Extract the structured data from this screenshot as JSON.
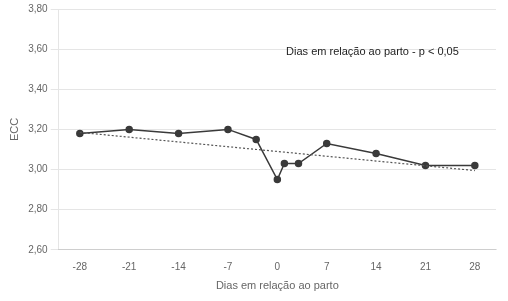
{
  "chart_data": {
    "type": "line",
    "xlabel": "Dias em relação ao parto",
    "ylabel": "ECC",
    "annotation": "Dias em relação ao parto - p < 0,05",
    "series": [
      {
        "x": [
          -28,
          28
        ],
        "values": [
          3.185,
          2.995
        ],
        "color": "#555555",
        "line_style": "dotted",
        "marker": "none"
      },
      {
        "x": [
          -28,
          -21,
          -14,
          -7,
          -3,
          0,
          1,
          3,
          7,
          14,
          21,
          28
        ],
        "values": [
          3.18,
          3.2,
          3.18,
          3.2,
          3.15,
          2.95,
          3.03,
          3.03,
          3.13,
          3.08,
          3.02,
          3.02
        ],
        "color": "#3a3a3a",
        "line_style": "solid",
        "marker": "circle"
      }
    ],
    "xlim": [
      -31,
      31
    ],
    "ylim": [
      2.6,
      3.8
    ],
    "xticks": [
      -28,
      -21,
      -14,
      -7,
      0,
      7,
      14,
      21,
      28
    ],
    "yticks": [
      {
        "value": 2.6,
        "label": "2,60"
      },
      {
        "value": 2.8,
        "label": "2,80"
      },
      {
        "value": 3.0,
        "label": "3,00"
      },
      {
        "value": 3.2,
        "label": "3,20"
      },
      {
        "value": 3.4,
        "label": "3,40"
      },
      {
        "value": 3.6,
        "label": "3,60"
      },
      {
        "value": 3.8,
        "label": "3,80"
      }
    ],
    "grid": "y",
    "legend": false
  }
}
